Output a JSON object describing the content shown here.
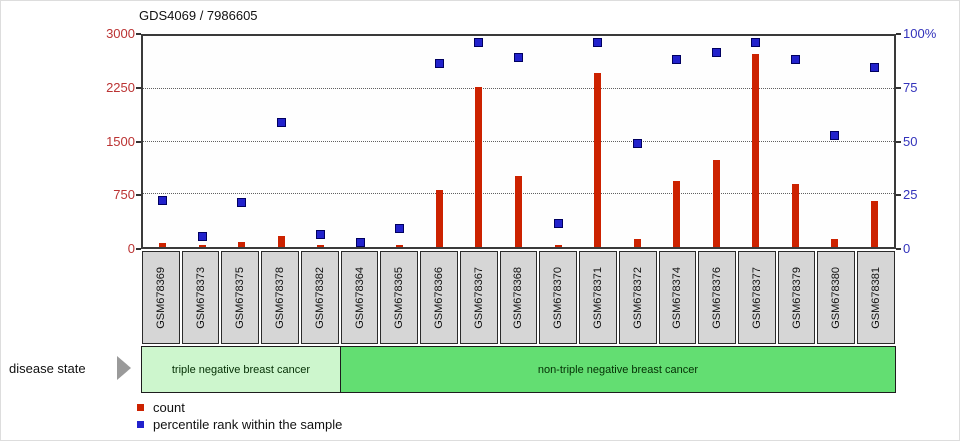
{
  "title": "GDS4069 / 7986605",
  "chart_data": {
    "type": "bar",
    "title": "GDS4069 / 7986605",
    "categories": [
      "GSM678369",
      "GSM678373",
      "GSM678375",
      "GSM678378",
      "GSM678382",
      "GSM678364",
      "GSM678365",
      "GSM678366",
      "GSM678367",
      "GSM678368",
      "GSM678370",
      "GSM678371",
      "GSM678372",
      "GSM678374",
      "GSM678376",
      "GSM678377",
      "GSM678379",
      "GSM678380",
      "GSM678381"
    ],
    "series": [
      {
        "name": "count",
        "type": "bar",
        "axis": "left",
        "color": "#cc2200",
        "values": [
          60,
          30,
          65,
          155,
          30,
          10,
          30,
          815,
          2280,
          1010,
          25,
          2470,
          110,
          940,
          1240,
          2740,
          900,
          120,
          660
        ]
      },
      {
        "name": "percentile rank within the sample",
        "type": "scatter",
        "axis": "right",
        "color": "#2222cc",
        "values": [
          22,
          5,
          21,
          59,
          6,
          2,
          9,
          87,
          97,
          90,
          11,
          97,
          49,
          89,
          92,
          97,
          89,
          53,
          85
        ]
      }
    ],
    "left_axis": {
      "range": [
        0,
        3000
      ],
      "ticks": [
        0,
        750,
        1500,
        2250,
        3000
      ],
      "labels": [
        "0",
        "750",
        "1500",
        "2250",
        "3000"
      ],
      "color": "#bb3333"
    },
    "right_axis": {
      "range": [
        0,
        100
      ],
      "ticks": [
        0,
        25,
        50,
        75,
        100
      ],
      "labels": [
        "0",
        "25",
        "50",
        "75",
        "100%"
      ],
      "color": "#3333bb"
    },
    "gridlines": [
      750,
      1500,
      2250
    ],
    "grid": "horizontal dotted",
    "legend_position": "bottom-left"
  },
  "groups": {
    "label": "disease state",
    "segments": [
      {
        "label": "triple negative breast cancer",
        "span": 5,
        "color": "#cdf6cd"
      },
      {
        "label": "non-triple negative breast cancer",
        "span": 14,
        "color": "#63de72"
      }
    ]
  },
  "legend": [
    {
      "label": "count",
      "color": "#cc2200"
    },
    {
      "label": "percentile rank within the sample",
      "color": "#2222cc"
    }
  ]
}
